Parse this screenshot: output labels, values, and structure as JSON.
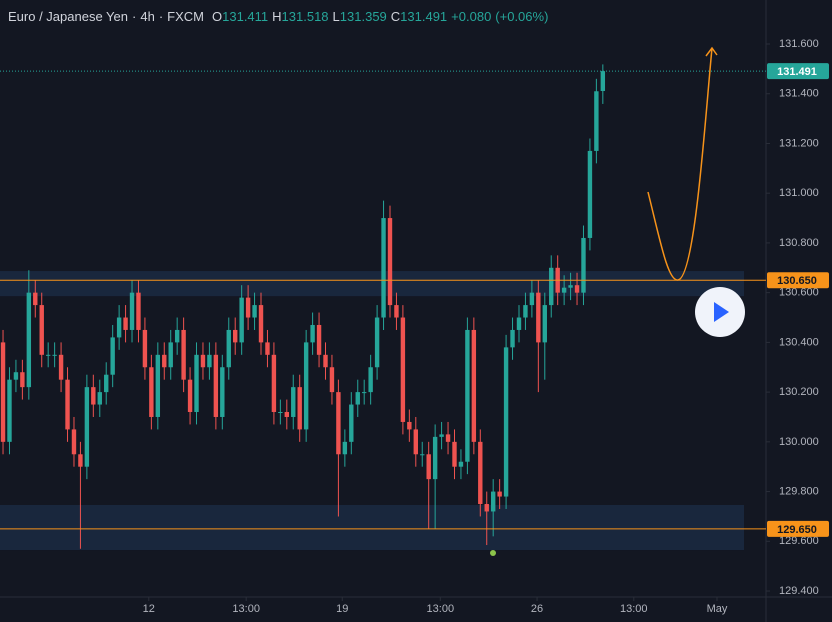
{
  "chart_data": {
    "type": "candlestick",
    "title": "Euro / Japanese Yen",
    "interval": "4h",
    "source": "FXCM",
    "separator": "·",
    "ohlc_letters": [
      "O",
      "H",
      "L",
      "C"
    ],
    "change_label": "+0.080",
    "change_pct_label": "(+0.06%)",
    "colors": {
      "up": "#26a69a",
      "down": "#ef5350",
      "level": "#f7931a",
      "zone": "#1c2c45"
    },
    "x": [
      0,
      1,
      2,
      3,
      4,
      5,
      6,
      7,
      8,
      9,
      10,
      11,
      12,
      13,
      14,
      15,
      16,
      17,
      18,
      19,
      20,
      21,
      22,
      23,
      24,
      25,
      26,
      27,
      28,
      29,
      30,
      31,
      32,
      33,
      34,
      35,
      36,
      37,
      38,
      39,
      40,
      41,
      42,
      43,
      44,
      45,
      46,
      47,
      48,
      49,
      50,
      51,
      52,
      53,
      54,
      55,
      56,
      57,
      58,
      59,
      60,
      61,
      62,
      63,
      64,
      65,
      66,
      67,
      68,
      69,
      70,
      71,
      72,
      73,
      74,
      75,
      76,
      77,
      78,
      79,
      80,
      81,
      82,
      83,
      84,
      85,
      86,
      87,
      88,
      89,
      90,
      91,
      92,
      93
    ],
    "open": [
      130.4,
      130.0,
      130.25,
      130.28,
      130.22,
      130.6,
      130.55,
      130.35,
      130.35,
      130.35,
      130.25,
      130.05,
      129.95,
      129.9,
      130.22,
      130.15,
      130.2,
      130.27,
      130.42,
      130.5,
      130.45,
      130.6,
      130.45,
      130.3,
      130.1,
      130.35,
      130.3,
      130.4,
      130.45,
      130.25,
      130.12,
      130.35,
      130.3,
      130.35,
      130.1,
      130.3,
      130.45,
      130.4,
      130.58,
      130.5,
      130.55,
      130.4,
      130.35,
      130.12,
      130.12,
      130.1,
      130.22,
      130.05,
      130.4,
      130.47,
      130.35,
      130.3,
      130.2,
      129.95,
      130.0,
      130.15,
      130.2,
      130.2,
      130.3,
      130.5,
      130.9,
      130.55,
      130.5,
      130.08,
      130.05,
      129.95,
      129.95,
      129.85,
      130.02,
      130.03,
      130.0,
      129.9,
      129.92,
      130.45,
      130.0,
      129.75,
      129.72,
      129.8,
      129.78,
      130.38,
      130.45,
      130.5,
      130.55,
      130.6,
      130.4,
      130.55,
      130.7,
      130.6,
      130.62,
      130.63,
      130.6,
      130.82,
      131.17,
      131.411
    ],
    "high": [
      130.45,
      130.3,
      130.33,
      130.33,
      130.69,
      130.65,
      130.6,
      130.4,
      130.4,
      130.4,
      130.3,
      130.1,
      130.0,
      130.27,
      130.27,
      130.25,
      130.32,
      130.47,
      130.55,
      130.55,
      130.65,
      130.65,
      130.5,
      130.35,
      130.4,
      130.4,
      130.45,
      130.5,
      130.5,
      130.3,
      130.4,
      130.4,
      130.4,
      130.4,
      130.35,
      130.5,
      130.5,
      130.63,
      130.63,
      130.6,
      130.6,
      130.45,
      130.4,
      130.17,
      130.17,
      130.27,
      130.27,
      130.45,
      130.52,
      130.52,
      130.4,
      130.35,
      130.25,
      130.05,
      130.2,
      130.25,
      130.25,
      130.35,
      130.55,
      130.97,
      130.95,
      130.6,
      130.55,
      130.13,
      130.1,
      130.0,
      130.0,
      130.07,
      130.08,
      130.08,
      130.05,
      129.97,
      130.5,
      130.5,
      130.05,
      129.8,
      129.85,
      129.85,
      130.43,
      130.5,
      130.55,
      130.6,
      130.65,
      130.65,
      130.6,
      130.75,
      130.75,
      130.67,
      130.68,
      130.68,
      130.87,
      131.22,
      131.46,
      131.518
    ],
    "low": [
      129.95,
      129.95,
      130.2,
      130.17,
      130.17,
      130.5,
      130.3,
      130.3,
      130.3,
      130.2,
      130.0,
      129.9,
      129.57,
      129.85,
      130.1,
      130.1,
      130.15,
      130.22,
      130.37,
      130.4,
      130.4,
      130.4,
      130.25,
      130.05,
      130.05,
      130.25,
      130.25,
      130.35,
      130.2,
      130.07,
      130.07,
      130.25,
      130.25,
      130.05,
      130.05,
      130.25,
      130.35,
      130.35,
      130.45,
      130.45,
      130.35,
      130.3,
      130.07,
      130.07,
      130.05,
      130.05,
      130.0,
      130.0,
      130.35,
      130.3,
      130.25,
      130.15,
      129.7,
      129.9,
      129.95,
      130.1,
      130.15,
      130.15,
      130.25,
      130.45,
      130.5,
      130.45,
      130.03,
      130.0,
      129.9,
      129.9,
      129.65,
      129.65,
      129.97,
      129.95,
      129.85,
      129.85,
      129.87,
      129.95,
      129.7,
      129.585,
      129.62,
      129.73,
      129.73,
      130.33,
      130.4,
      130.45,
      130.5,
      130.2,
      130.25,
      130.5,
      130.55,
      130.55,
      130.57,
      130.55,
      130.55,
      130.77,
      131.12,
      131.359
    ],
    "close": [
      130.0,
      130.25,
      130.28,
      130.22,
      130.6,
      130.55,
      130.35,
      130.35,
      130.35,
      130.25,
      130.05,
      129.95,
      129.9,
      130.22,
      130.15,
      130.2,
      130.27,
      130.42,
      130.5,
      130.45,
      130.6,
      130.45,
      130.3,
      130.1,
      130.35,
      130.3,
      130.4,
      130.45,
      130.25,
      130.12,
      130.35,
      130.3,
      130.35,
      130.1,
      130.3,
      130.45,
      130.4,
      130.58,
      130.5,
      130.55,
      130.4,
      130.35,
      130.12,
      130.12,
      130.1,
      130.22,
      130.05,
      130.4,
      130.47,
      130.35,
      130.3,
      130.2,
      129.95,
      130.0,
      130.15,
      130.2,
      130.2,
      130.3,
      130.5,
      130.9,
      130.55,
      130.5,
      130.08,
      130.05,
      129.95,
      129.95,
      129.85,
      130.02,
      130.03,
      130.0,
      129.9,
      129.92,
      130.45,
      130.0,
      129.75,
      129.72,
      129.8,
      129.78,
      130.38,
      130.45,
      130.5,
      130.55,
      130.6,
      130.4,
      130.55,
      130.7,
      130.6,
      130.62,
      130.63,
      130.6,
      130.82,
      131.17,
      131.41,
      131.491
    ],
    "ylim": [
      129.376,
      131.777
    ],
    "yticks": [
      {
        "value": 129.4,
        "label": "129.400"
      },
      {
        "value": 129.6,
        "label": "129.600"
      },
      {
        "value": 129.8,
        "label": "129.800"
      },
      {
        "value": 130.0,
        "label": "130.000"
      },
      {
        "value": 130.2,
        "label": "130.200"
      },
      {
        "value": 130.4,
        "label": "130.400"
      },
      {
        "value": 130.6,
        "label": "130.600"
      },
      {
        "value": 130.8,
        "label": "130.800"
      },
      {
        "value": 131.0,
        "label": "131.000"
      },
      {
        "value": 131.2,
        "label": "131.200"
      },
      {
        "value": 131.4,
        "label": "131.400"
      },
      {
        "value": 131.6,
        "label": "131.600"
      }
    ],
    "xlim": [
      -0.47,
      118.3
    ],
    "xticks": [
      {
        "value": 22.6,
        "label": "12"
      },
      {
        "value": 37.7,
        "label": "13:00"
      },
      {
        "value": 52.6,
        "label": "19"
      },
      {
        "value": 67.8,
        "label": "13:00"
      },
      {
        "value": 82.8,
        "label": "26"
      },
      {
        "value": 97.8,
        "label": "13:00"
      },
      {
        "value": 110.7,
        "label": "May"
      }
    ],
    "levels": [
      {
        "value": 130.65,
        "label": "130.650"
      },
      {
        "value": 129.65,
        "label": "129.650"
      }
    ],
    "zones": [
      [
        130.586,
        130.687
      ],
      [
        129.565,
        129.746
      ]
    ]
  }
}
